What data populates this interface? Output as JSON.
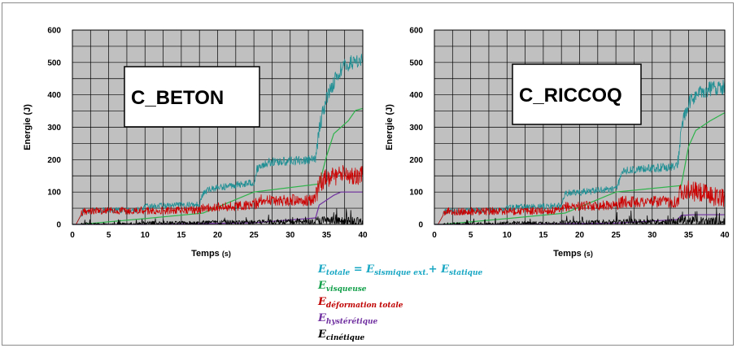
{
  "chart_data": [
    {
      "type": "line",
      "label_box": "C_BETON",
      "xlabel": "Temps",
      "xlabel_unit": "(s)",
      "ylabel": "Energie (J)",
      "xlim": [
        0,
        40
      ],
      "ylim": [
        0,
        600
      ],
      "xticks": [
        "0",
        "5",
        "10",
        "15",
        "20",
        "25",
        "30",
        "35",
        "40"
      ],
      "yticks": [
        "0",
        "100",
        "200",
        "300",
        "400",
        "500",
        "600"
      ],
      "grid": true,
      "series": [
        {
          "key": "totale",
          "color": "#1f8f94",
          "noise": 9,
          "x": [
            0,
            0.5,
            1.5,
            9.5,
            10,
            17.5,
            18,
            19,
            25,
            25.5,
            27,
            33.5,
            34,
            35,
            36,
            37,
            38,
            39,
            40
          ],
          "y": [
            0,
            0,
            42,
            45,
            55,
            62,
            95,
            110,
            130,
            175,
            192,
            200,
            300,
            390,
            440,
            480,
            495,
            505,
            510
          ]
        },
        {
          "key": "visqueuse",
          "color": "#2db34a",
          "noise": 0,
          "x": [
            0,
            1,
            2,
            10,
            18,
            25,
            34,
            35,
            36,
            38,
            39,
            40
          ],
          "y": [
            0,
            0,
            2,
            18,
            35,
            100,
            125,
            210,
            280,
            320,
            352,
            358
          ]
        },
        {
          "key": "deformation",
          "color": "#cc0000",
          "noise": 12,
          "x": [
            0,
            0.5,
            1.5,
            17.5,
            18,
            25,
            26,
            33.5,
            34,
            36,
            40
          ],
          "y": [
            0,
            0,
            42,
            44,
            50,
            60,
            75,
            75,
            130,
            150,
            155
          ]
        },
        {
          "key": "hysteretique",
          "color": "#7030a0",
          "noise": 0,
          "x": [
            0,
            10,
            25,
            33.5,
            34,
            36,
            37,
            40
          ],
          "y": [
            0,
            0,
            5,
            20,
            60,
            90,
            100,
            100
          ]
        },
        {
          "key": "cinetique",
          "color": "#000000",
          "noise": 6,
          "x": [
            0,
            9,
            10,
            17.5,
            18,
            25,
            26,
            33.5,
            34,
            36,
            40
          ],
          "y": [
            0,
            0,
            4,
            4,
            6,
            6,
            8,
            8,
            12,
            8,
            6
          ]
        }
      ]
    },
    {
      "type": "line",
      "label_box": "C_RICCOQ",
      "xlabel": "Temps",
      "xlabel_unit": "(s)",
      "ylabel": "Energie (J)",
      "xlim": [
        0,
        40
      ],
      "ylim": [
        0,
        600
      ],
      "xticks": [
        "0",
        "5",
        "10",
        "15",
        "20",
        "25",
        "30",
        "35",
        "40"
      ],
      "yticks": [
        "0",
        "100",
        "200",
        "300",
        "400",
        "500",
        "600"
      ],
      "grid": true,
      "series": [
        {
          "key": "totale",
          "color": "#1f8f94",
          "noise": 9,
          "x": [
            0,
            0.5,
            1.5,
            9.5,
            10,
            17.5,
            18,
            25,
            26,
            33.5,
            34,
            35,
            36,
            38,
            40
          ],
          "y": [
            0,
            0,
            40,
            45,
            52,
            58,
            95,
            110,
            165,
            180,
            300,
            370,
            400,
            420,
            425
          ]
        },
        {
          "key": "visqueuse",
          "color": "#2db34a",
          "noise": 0,
          "x": [
            0,
            1,
            2,
            10,
            18,
            25,
            34,
            35,
            36,
            38,
            40
          ],
          "y": [
            0,
            0,
            2,
            18,
            35,
            100,
            120,
            240,
            290,
            320,
            345
          ]
        },
        {
          "key": "deformation",
          "color": "#cc0000",
          "noise": 12,
          "x": [
            0,
            0.5,
            1.5,
            17.5,
            18,
            25,
            26,
            33.5,
            34,
            36,
            40
          ],
          "y": [
            0,
            0,
            40,
            42,
            55,
            60,
            70,
            70,
            110,
            100,
            80
          ]
        },
        {
          "key": "hysteretique",
          "color": "#7030a0",
          "noise": 0,
          "x": [
            0,
            10,
            25,
            33.5,
            34,
            36,
            40
          ],
          "y": [
            0,
            0,
            4,
            15,
            28,
            30,
            30
          ]
        },
        {
          "key": "cinetique",
          "color": "#000000",
          "noise": 6,
          "x": [
            0,
            9,
            10,
            17.5,
            18,
            25,
            26,
            33.5,
            34,
            36,
            40
          ],
          "y": [
            0,
            0,
            4,
            4,
            6,
            6,
            8,
            8,
            12,
            8,
            6
          ]
        }
      ]
    }
  ],
  "legend": [
    {
      "key": "totale",
      "color": "#19a7c4",
      "parts": [
        {
          "t": "E",
          "sub": "totale"
        },
        {
          "t": " = "
        },
        {
          "t": "E",
          "sub": "sismique ext."
        },
        {
          "t": "+ "
        },
        {
          "t": "E",
          "sub": "statique"
        }
      ]
    },
    {
      "key": "visqueuse",
      "color": "#13a04a",
      "parts": [
        {
          "t": "E",
          "sub": "visqueuse"
        }
      ]
    },
    {
      "key": "deformation",
      "color": "#c00000",
      "parts": [
        {
          "t": "E",
          "sub": "déformation totale"
        }
      ]
    },
    {
      "key": "hysteretique",
      "color": "#7030a0",
      "parts": [
        {
          "t": "E",
          "sub": "hystérétique"
        }
      ]
    },
    {
      "key": "cinetique",
      "color": "#000000",
      "parts": [
        {
          "t": "E",
          "sub": "cinétique"
        }
      ]
    }
  ]
}
